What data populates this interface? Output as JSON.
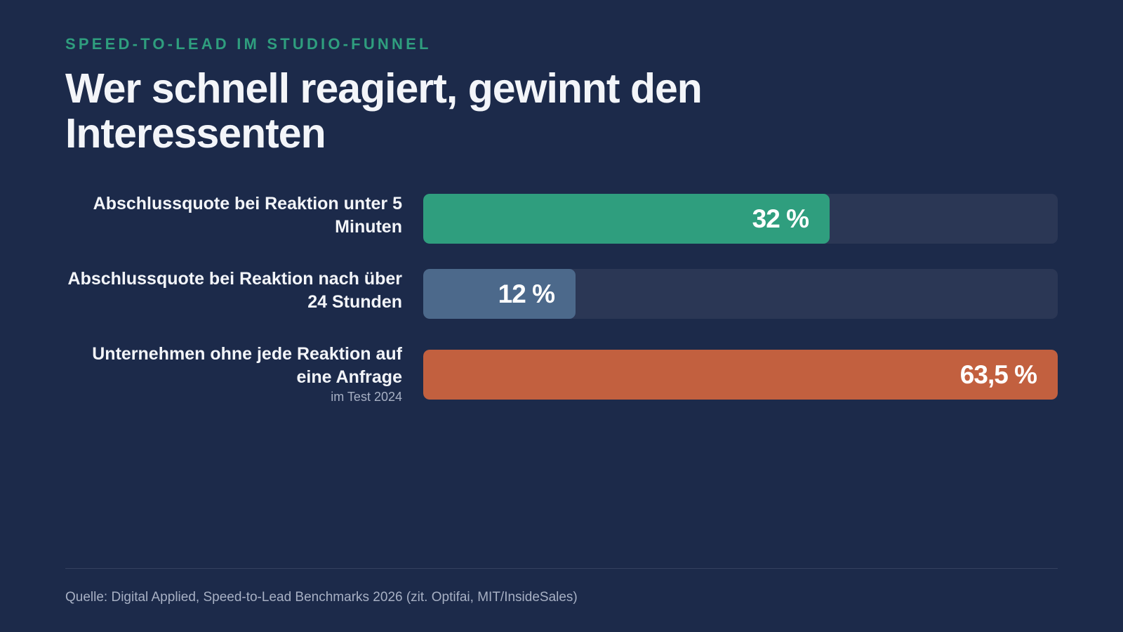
{
  "header": {
    "eyebrow": "SPEED-TO-LEAD IM STUDIO-FUNNEL",
    "title": "Wer schnell reagiert, gewinnt den Interessenten"
  },
  "chart_data": {
    "type": "bar",
    "orientation": "horizontal",
    "xlim": [
      0,
      100
    ],
    "grid": false,
    "categories": [
      "Abschlussquote bei Reaktion unter 5 Minuten",
      "Abschlussquote bei Reaktion nach über 24 Stunden",
      "Unternehmen ohne jede Reaktion auf eine Anfrage"
    ],
    "values": [
      32,
      12,
      63.5
    ],
    "value_labels": [
      "32 %",
      "12 %",
      "63,5 %"
    ],
    "notes": [
      "",
      "",
      "im Test 2024"
    ],
    "colors": [
      "#2f9e7e",
      "#4c698b",
      "#c2603f"
    ],
    "track_color": "#2b3755",
    "bar_full_scale": [
      50,
      50,
      63.5
    ]
  },
  "footer": {
    "source": "Quelle: Digital Applied, Speed-to-Lead Benchmarks 2026 (zit. Optifai, MIT/InsideSales)"
  },
  "theme": {
    "background": "#1c2a4a",
    "accent": "#2f9e7e"
  }
}
